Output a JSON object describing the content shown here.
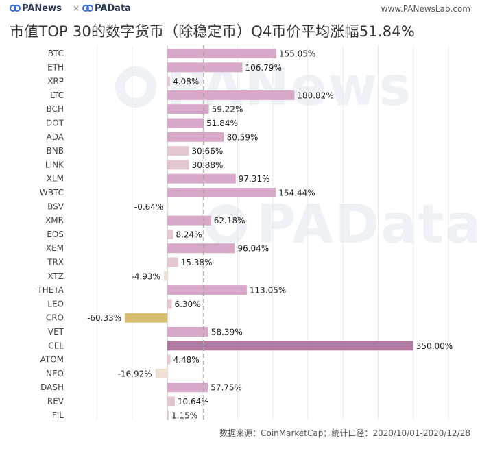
{
  "header": {
    "brand_left": "PANews",
    "separator": "×",
    "brand_right": "PAData",
    "url": "www.PANewsLab.com"
  },
  "watermarks": [
    "PANews",
    "PAData"
  ],
  "footer": {
    "source": "数据来源：CoinMarketCap；统计口径：2020/10/01-2020/12/28"
  },
  "colors": {
    "positive_bar_light": "#e3c7d3",
    "positive_bar_mid": "#d7a8c8",
    "positive_bar_dark": "#b07aa1",
    "negative_bar_light": "#eee0d2",
    "negative_bar_dark": "#d9be6f",
    "average_line": "#a8a8a8"
  },
  "chart_data": {
    "type": "bar",
    "orientation": "horizontal",
    "title": "市值TOP 30的数字货币（除稳定币）Q4币价平均涨幅51.84%",
    "xlabel": "",
    "ylabel": "",
    "xlim": [
      -100,
      400
    ],
    "grid": true,
    "average_line": 51.84,
    "categories": [
      "BTC",
      "ETH",
      "XRP",
      "LTC",
      "BCH",
      "DOT",
      "ADA",
      "BNB",
      "LINK",
      "XLM",
      "WBTC",
      "BSV",
      "XMR",
      "EOS",
      "XEM",
      "TRX",
      "XTZ",
      "THETA",
      "LEO",
      "CRO",
      "VET",
      "CEL",
      "ATOM",
      "NEO",
      "DASH",
      "REV",
      "FIL"
    ],
    "values": [
      155.05,
      106.79,
      4.08,
      180.82,
      59.22,
      51.84,
      80.59,
      30.66,
      30.88,
      97.31,
      154.44,
      -0.64,
      62.18,
      8.24,
      96.04,
      15.38,
      -4.93,
      113.05,
      6.3,
      -60.33,
      58.39,
      350.0,
      4.48,
      -16.92,
      57.75,
      10.64,
      1.15
    ],
    "labels": [
      "155.05%",
      "106.79%",
      "4.08%",
      "180.82%",
      "59.22%",
      "51.84%",
      "80.59%",
      "30.66%",
      "30.88%",
      "97.31%",
      "154.44%",
      "-0.64%",
      "62.18%",
      "8.24%",
      "96.04%",
      "15.38%",
      "-4.93%",
      "113.05%",
      "6.30%",
      "-60.33%",
      "58.39%",
      "350.00%",
      "4.48%",
      "-16.92%",
      "57.75%",
      "10.64%",
      "1.15%"
    ]
  }
}
